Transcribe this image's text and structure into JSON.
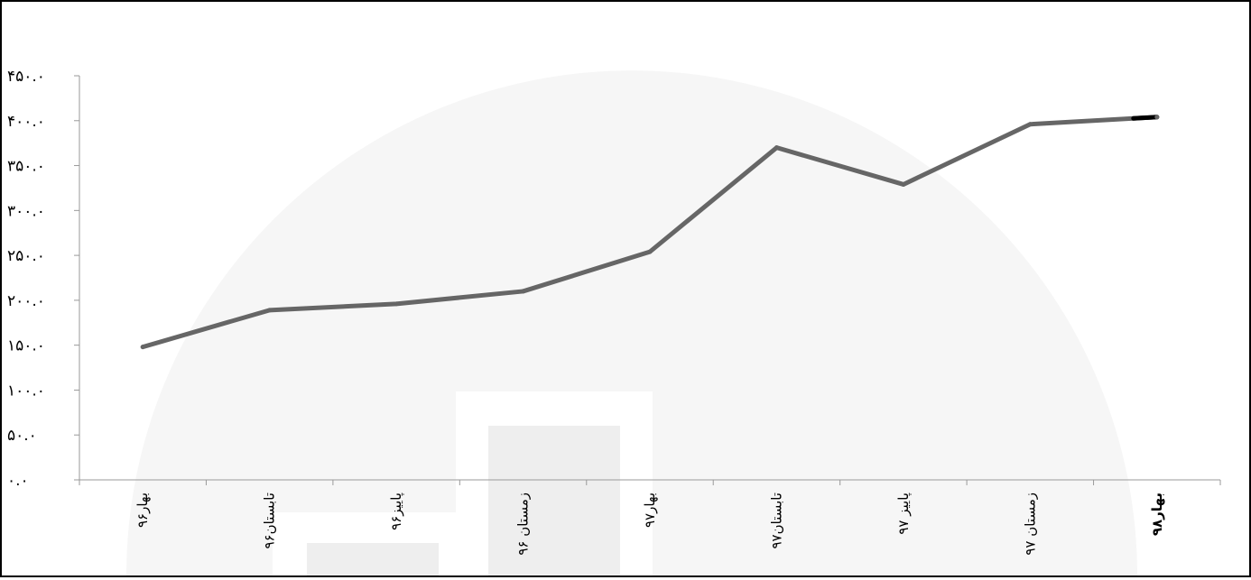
{
  "chart_data": {
    "type": "line",
    "categories": [
      "بهار۹۶",
      "تابستان۹۶",
      "پاییز۹۶",
      "زمستان ۹۶",
      "بهار۹۷",
      "تابستان۹۷",
      "پاییز ۹۷",
      "زمستان ۹۷",
      "بهار۹۸"
    ],
    "series": [
      {
        "values": [
          148,
          189,
          196,
          210,
          254,
          370,
          329,
          396,
          404
        ]
      }
    ],
    "ylim": [
      0,
      450
    ],
    "yticks": [
      0,
      50,
      100,
      150,
      200,
      250,
      300,
      350,
      400,
      450
    ],
    "ytick_labels": [
      "۰.۰",
      "۵۰.۰",
      "۱۰۰.۰",
      "۱۵۰.۰",
      "۲۰۰.۰",
      "۲۵۰.۰",
      "۳۰۰.۰",
      "۳۵۰.۰",
      "۴۰۰.۰",
      "۴۵۰.۰"
    ],
    "grid": false,
    "legend": "none",
    "title": "",
    "xlabel": "",
    "ylabel": ""
  },
  "colors": {
    "line": "#666666",
    "line_end": "#000000",
    "axis": "#999999",
    "tick_text": "#000000",
    "watermark": "#f4f4f4"
  }
}
